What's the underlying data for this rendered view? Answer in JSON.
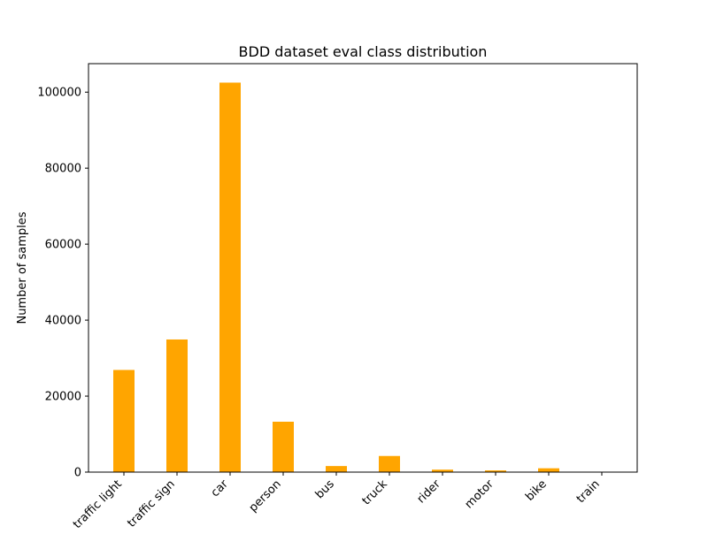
{
  "chart_data": {
    "type": "bar",
    "title": "BDD dataset eval class distribution",
    "xlabel": "",
    "ylabel": "Number of samples",
    "categories": [
      "traffic light",
      "traffic sign",
      "car",
      "person",
      "bus",
      "truck",
      "rider",
      "motor",
      "bike",
      "train"
    ],
    "values": [
      26885,
      34908,
      102506,
      13262,
      1597,
      4245,
      649,
      452,
      1007,
      15
    ],
    "ylim": [
      0,
      107500
    ],
    "yticks": [
      0,
      20000,
      40000,
      60000,
      80000,
      100000
    ],
    "bar_color": "#ffa500",
    "grid": false,
    "legend": "none"
  }
}
